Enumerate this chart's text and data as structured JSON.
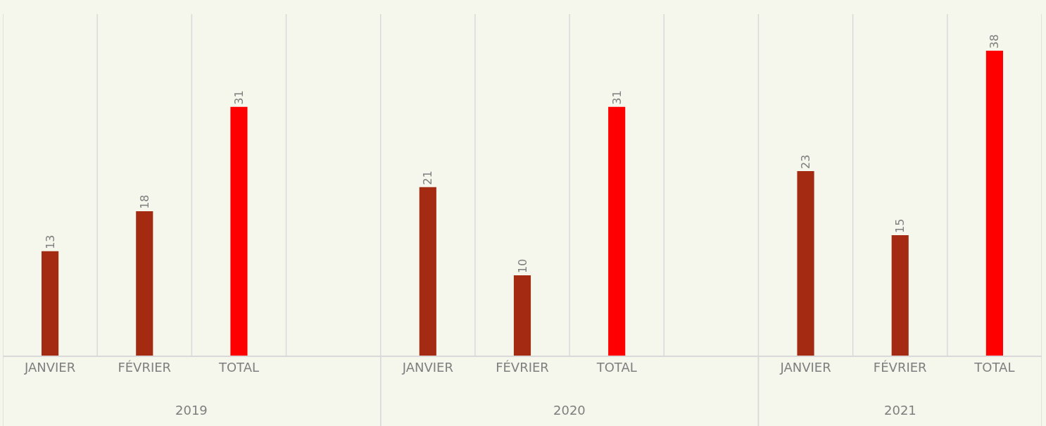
{
  "chart_data": {
    "type": "bar",
    "categories": [
      "JANVIER",
      "FÉVRIER",
      "TOTAL",
      null,
      "JANVIER",
      "FÉVRIER",
      "TOTAL",
      null,
      "JANVIER",
      "FÉVRIER",
      "TOTAL"
    ],
    "values": [
      13,
      18,
      31,
      null,
      21,
      10,
      31,
      null,
      23,
      15,
      38
    ],
    "colors": [
      "#a52a12",
      "#a52a12",
      "#ff0000",
      null,
      "#a52a12",
      "#a52a12",
      "#ff0000",
      null,
      "#a52a12",
      "#a52a12",
      "#ff0000"
    ],
    "annotations": [
      "2019",
      "2020",
      "2021"
    ],
    "data_labels": true,
    "grid": "x"
  }
}
